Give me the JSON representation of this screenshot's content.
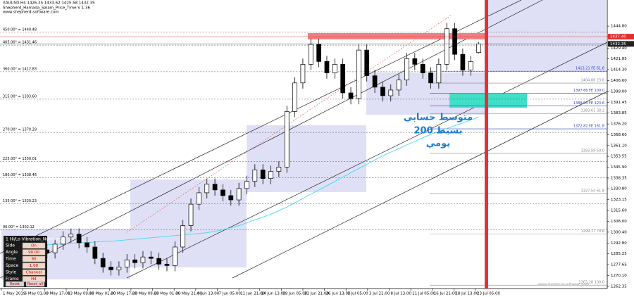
{
  "chart_data": {
    "type": "candlestick",
    "header_lines": [
      "XAUUSD,H4  1426.25 1433.62 1425.58 1432.35",
      "Shepherd_Hamada_Salam_Price_Time V 1.36",
      "www.shepherd-software.com"
    ],
    "open": [
      1285,
      1283,
      1285,
      1280,
      1284,
      1288,
      1286,
      1292,
      1297,
      1299,
      1293,
      1290,
      1282,
      1276,
      1274,
      1276,
      1281,
      1279,
      1283,
      1282,
      1278,
      1277,
      1290,
      1305,
      1320,
      1328,
      1334,
      1330,
      1326,
      1323,
      1331,
      1336,
      1344,
      1338,
      1343,
      1346,
      1385,
      1405,
      1418,
      1432,
      1420,
      1412,
      1418,
      1398,
      1394,
      1428,
      1410,
      1402,
      1396,
      1400,
      1407,
      1422,
      1418,
      1412,
      1405,
      1418,
      1443,
      1425,
      1414,
      1426.25
    ],
    "high": [
      1289,
      1289,
      1289,
      1288,
      1292,
      1292,
      1296,
      1301,
      1303,
      1303,
      1297,
      1294,
      1286,
      1280,
      1280,
      1285,
      1285,
      1287,
      1287,
      1286,
      1282,
      1294,
      1309,
      1324,
      1332,
      1338,
      1338,
      1334,
      1330,
      1335,
      1340,
      1348,
      1348,
      1347,
      1350,
      1389,
      1409,
      1422,
      1436,
      1436,
      1424,
      1422,
      1422,
      1402,
      1432,
      1432,
      1414,
      1406,
      1404,
      1411,
      1426,
      1426,
      1422,
      1416,
      1422,
      1447,
      1447,
      1429,
      1424,
      1433.62
    ],
    "low": [
      1279,
      1279,
      1276,
      1276,
      1280,
      1282,
      1282,
      1288,
      1293,
      1289,
      1286,
      1278,
      1272,
      1270,
      1270,
      1272,
      1275,
      1275,
      1278,
      1274,
      1273,
      1273,
      1286,
      1301,
      1316,
      1324,
      1326,
      1322,
      1319,
      1319,
      1327,
      1332,
      1334,
      1334,
      1339,
      1342,
      1381,
      1401,
      1414,
      1416,
      1408,
      1408,
      1394,
      1390,
      1390,
      1406,
      1398,
      1392,
      1392,
      1396,
      1403,
      1414,
      1408,
      1401,
      1401,
      1414,
      1421,
      1410,
      1410,
      1425.58
    ],
    "close": [
      1283,
      1285,
      1280,
      1284,
      1288,
      1286,
      1292,
      1297,
      1299,
      1293,
      1290,
      1282,
      1276,
      1274,
      1276,
      1281,
      1279,
      1283,
      1282,
      1278,
      1277,
      1290,
      1305,
      1320,
      1328,
      1334,
      1330,
      1326,
      1323,
      1331,
      1336,
      1344,
      1338,
      1343,
      1346,
      1385,
      1405,
      1418,
      1432,
      1420,
      1412,
      1418,
      1398,
      1394,
      1428,
      1410,
      1402,
      1396,
      1400,
      1407,
      1422,
      1418,
      1412,
      1405,
      1418,
      1443,
      1425,
      1414,
      1420,
      1432.35
    ],
    "ma": {
      "color": "#3fd8f0",
      "values": [
        1288,
        1289,
        1290,
        1290.5,
        1291,
        1291.5,
        1292,
        1292,
        1292.5,
        1293,
        1293,
        1293.5,
        1294,
        1294,
        1294.5,
        1295,
        1295.5,
        1296,
        1296.5,
        1297,
        1297.5,
        1298,
        1298.5,
        1299,
        1299.5,
        1300,
        1301,
        1302,
        1303.5,
        1305,
        1307,
        1309,
        1311,
        1313,
        1315.5,
        1318,
        1321,
        1324,
        1327,
        1330,
        1333,
        1336,
        1339,
        1342,
        1345,
        1348,
        1351,
        1354,
        1356.5,
        1359,
        1361.5,
        1364,
        1366.5,
        1369,
        1371,
        1373,
        1375,
        1377,
        1379,
        1381
      ]
    },
    "xlim": [
      -0.88,
      75.07
    ],
    "ylim": [
      1259.9,
      1462.1
    ],
    "xticks": [
      {
        "value": -0.7,
        "label": "1 May 2019"
      },
      {
        "value": 2.0,
        "label": "6 May 01:00"
      },
      {
        "value": 4.7,
        "label": "8 May 17:00"
      },
      {
        "value": 7.4,
        "label": "13 May 09:00"
      },
      {
        "value": 10.1,
        "label": "16 May 01:00"
      },
      {
        "value": 12.8,
        "label": "20 May 17:00"
      },
      {
        "value": 15.5,
        "label": "23 May 09:00"
      },
      {
        "value": 18.2,
        "label": "28 May 01:00"
      },
      {
        "value": 20.9,
        "label": "30 May 21:00"
      },
      {
        "value": 23.6,
        "label": "4 Jun 13:00"
      },
      {
        "value": 26.3,
        "label": "7 Jun 05:00"
      },
      {
        "value": 29.0,
        "label": "11 Jun 21:00"
      },
      {
        "value": 31.6,
        "label": "14 Jun 13:00"
      },
      {
        "value": 34.3,
        "label": "19 Jun 05:00"
      },
      {
        "value": 37.0,
        "label": "21 Jun 21:00"
      },
      {
        "value": 39.7,
        "label": "26 Jun 13:00"
      },
      {
        "value": 42.4,
        "label": "1 Jul 05:00"
      },
      {
        "value": 45.1,
        "label": "3 Jul 21:00"
      },
      {
        "value": 47.8,
        "label": "8 Jul 13:00"
      },
      {
        "value": 50.5,
        "label": "11 Jul 05:00"
      },
      {
        "value": 53.2,
        "label": "16 Jul 21:00"
      },
      {
        "value": 55.9,
        "label": "18 Jul 13:00"
      },
      {
        "value": 58.6,
        "label": "23 Jul 05:00"
      }
    ],
    "yticks": [
      {
        "value": 1444.8,
        "label": "1444.80"
      },
      {
        "value": 1437.2,
        "label": "1437.20"
      },
      {
        "value": 1429.4,
        "label": "1429.40"
      },
      {
        "value": 1421.85,
        "label": "1421.85"
      },
      {
        "value": 1414.3,
        "label": "1414.30"
      },
      {
        "value": 1406.6,
        "label": "1406.60"
      },
      {
        "value": 1399,
        "label": "1399.00"
      },
      {
        "value": 1391.45,
        "label": "1391.45"
      },
      {
        "value": 1383.85,
        "label": "1383.85"
      },
      {
        "value": 1376.2,
        "label": "1376.20"
      },
      {
        "value": 1368.6,
        "label": "1368.60"
      },
      {
        "value": 1361.1,
        "label": "1361.10"
      },
      {
        "value": 1353.55,
        "label": "1353.55"
      },
      {
        "value": 1345.9,
        "label": "1345.90"
      },
      {
        "value": 1338.35,
        "label": "1338.35"
      },
      {
        "value": 1330.8,
        "label": "1330.80"
      },
      {
        "value": 1323.15,
        "label": "1323.15"
      },
      {
        "value": 1315.6,
        "label": "1315.60"
      },
      {
        "value": 1308,
        "label": "1308.00"
      },
      {
        "value": 1300.4,
        "label": "1300.40"
      },
      {
        "value": 1292.8,
        "label": "1292.80"
      },
      {
        "value": 1285.25,
        "label": "1285.25"
      },
      {
        "value": 1277.65,
        "label": "1277.65"
      },
      {
        "value": 1270.1,
        "label": "1270.10"
      },
      {
        "value": 1262.35,
        "label": "1262.35"
      }
    ],
    "levels": [
      {
        "value": 1440.48,
        "label": "450.00° = 1440.48"
      },
      {
        "value": 1431.46,
        "label": "405.00° = 1431.46"
      },
      {
        "value": 1412.83,
        "label": "360.00° = 1412.83"
      },
      {
        "value": 1393.6,
        "label": "315.00° = 1393.60"
      },
      {
        "value": 1370.29,
        "label": "270.00° = 1370.29"
      },
      {
        "value": 1350.01,
        "label": "225.00° = 1350.01"
      },
      {
        "value": 1338.46,
        "label": "180.00° = 1338.46"
      },
      {
        "value": 1320.23,
        "label": "135.00° = 1320.23"
      },
      {
        "value": 1302.12,
        "label": "90.00° = 1302.12"
      }
    ],
    "fib_levels": [
      {
        "value": 1413.21,
        "label": "1413.21  FE 61.8",
        "color": "#2a3fc8"
      },
      {
        "value": 1404.88,
        "label": "1404.88  23.6",
        "color": "#888888"
      },
      {
        "value": 1397.66,
        "label": "1397.66  FE 100.0",
        "color": "#2a3fc8"
      },
      {
        "value": 1388.94,
        "label": "1388.94  FE 123.6",
        "color": "#2a3fc8"
      },
      {
        "value": 1383.61,
        "label": "1383.61  38.2",
        "color": "#888888"
      },
      {
        "value": 1372.82,
        "label": "1372.82  FE 161.8",
        "color": "#2a3fc8"
      },
      {
        "value": 1355.59,
        "label": "1355.59  50.0",
        "color": "#888888"
      },
      {
        "value": 1327.54,
        "label": "1327.54  61.8",
        "color": "#888888"
      },
      {
        "value": 1299.17,
        "label": "1299.17  78.6",
        "color": "#888888"
      },
      {
        "value": 1263.28,
        "label": "1263.28  100.0",
        "color": "#888888"
      }
    ],
    "price_labels": [
      {
        "value": 1437.4,
        "label": "1437.40",
        "color": "#e03030"
      },
      {
        "value": 1432.35,
        "label": "1432.35",
        "color": "#222222"
      }
    ],
    "annotation_lines": [
      "متوسط حسابي",
      "بسيط 200",
      "يومي"
    ],
    "panel": {
      "title": "1 Hi/Lo Vibration_Number_5",
      "rows": [
        [
          "Side",
          "On"
        ],
        [
          "Angle",
          "90.00"
        ],
        [
          "Time",
          "90"
        ],
        [
          "Space",
          "1.00"
        ],
        [
          "Style",
          "Channel"
        ],
        [
          "Frame",
          "H4"
        ]
      ],
      "buttons": [
        "Reset",
        "Reset_all"
      ]
    },
    "watermark": "www.shepherd-software.com"
  }
}
